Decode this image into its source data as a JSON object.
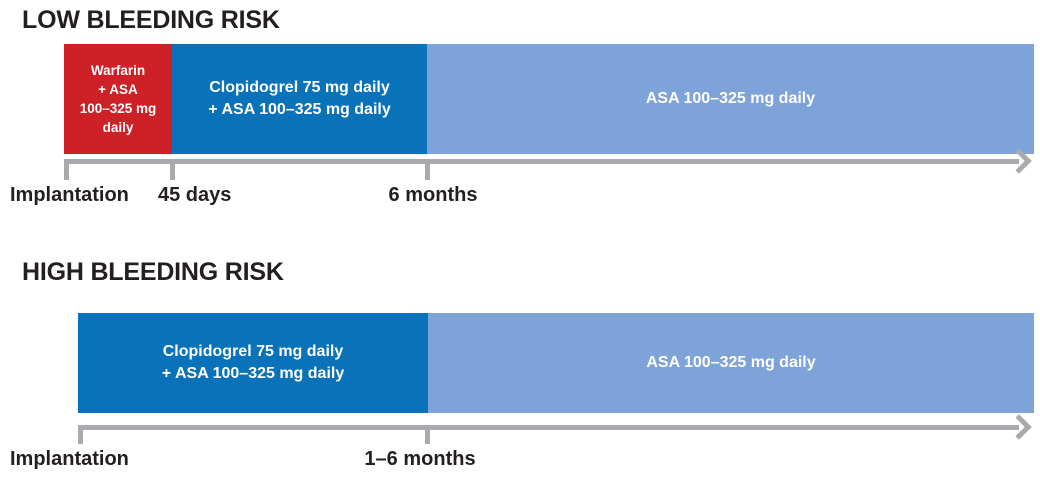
{
  "low": {
    "title": "LOW BLEEDING RISK",
    "segments": {
      "warfarin": {
        "label": "Warfarin\n+ ASA\n100–325 mg\ndaily"
      },
      "clopidogrel": {
        "label": "Clopidogrel 75 mg daily\n+ ASA 100–325 mg daily"
      },
      "asa": {
        "label": "ASA 100–325 mg daily"
      }
    },
    "axis": {
      "start_label": "Implantation",
      "mid_label": "45 days",
      "end_label": "6 months"
    }
  },
  "high": {
    "title": "HIGH BLEEDING RISK",
    "segments": {
      "clopidogrel": {
        "label": "Clopidogrel 75 mg daily\n+ ASA 100–325 mg daily"
      },
      "asa": {
        "label": "ASA 100–325 mg daily"
      }
    },
    "axis": {
      "start_label": "Implantation",
      "end_label": "1–6 months"
    }
  },
  "colors": {
    "warfarin_red": "#ce2127",
    "clopidogrel_blue": "#0a72b8",
    "asa_light_blue": "#7ea3d8",
    "axis_gray": "#a8aaad",
    "text_black": "#231f20"
  }
}
